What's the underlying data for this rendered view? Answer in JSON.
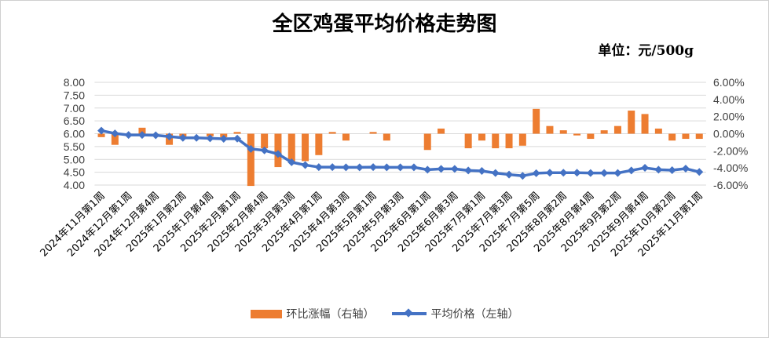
{
  "colors": {
    "bar": "#ed7d31",
    "line": "#4472c4",
    "grid": "#d9d9d9"
  },
  "chart_data": {
    "type": "bar+line",
    "title": "全区鸡蛋平均价格走势图",
    "unit": "单位：元/500g",
    "x_tick_labels": [
      "2024年11月第1周",
      "2024年12月第1周",
      "2024年12月第4周",
      "2025年1月第2周",
      "2025年1月第4周",
      "2025年2月第1周",
      "2025年2月第4周",
      "2025年3月第3周",
      "2025年4月第1周",
      "2025年4月第3周",
      "2025年5月第1周",
      "2025年5月第3周",
      "2025年6月第1周",
      "2025年6月第3周",
      "2025年7月第1周",
      "2025年7月第3周",
      "2025年7月第5周",
      "2025年8月第2周",
      "2025年8月第4周",
      "2025年9月第2周",
      "2025年9月第4周",
      "2025年10月第2周",
      "2025年11月第1周"
    ],
    "label_every": 2,
    "left_axis": {
      "range": [
        4.0,
        8.0
      ],
      "step": 0.5,
      "ticks": [
        "8.00",
        "7.50",
        "7.00",
        "6.50",
        "6.00",
        "5.50",
        "5.00",
        "4.50",
        "4.00"
      ]
    },
    "right_axis": {
      "range": [
        -6,
        6
      ],
      "step": 2,
      "ticks": [
        "6.00%",
        "4.00%",
        "2.00%",
        "0.00%",
        "-2.00%",
        "-4.00%",
        "-6.00%"
      ]
    },
    "series": [
      {
        "name": "环比涨幅（右轴）",
        "type": "bar",
        "axis": "right",
        "unit": "%",
        "values": [
          -0.4,
          -1.3,
          0,
          0.7,
          0,
          -1.3,
          -0.4,
          0,
          -0.3,
          -0.4,
          0.2,
          -6.1,
          -1.7,
          -3.9,
          -3.4,
          -3.2,
          -2.5,
          0.2,
          -0.8,
          0,
          0.2,
          -0.8,
          0,
          0,
          -1.9,
          0.6,
          0,
          -1.7,
          -0.8,
          -1.7,
          -1.7,
          -1.4,
          2.9,
          0.9,
          0.4,
          -0.2,
          -0.6,
          0.4,
          0.9,
          2.7,
          2.3,
          0.6,
          -0.8,
          -0.6,
          -0.6
        ]
      },
      {
        "name": "平均价格（左轴）",
        "type": "line",
        "axis": "left",
        "values": [
          6.12,
          6.01,
          5.95,
          5.95,
          5.94,
          5.89,
          5.84,
          5.84,
          5.82,
          5.8,
          5.81,
          5.41,
          5.35,
          5.21,
          4.89,
          4.78,
          4.7,
          4.7,
          4.69,
          4.69,
          4.7,
          4.69,
          4.69,
          4.69,
          4.6,
          4.63,
          4.63,
          4.57,
          4.55,
          4.47,
          4.41,
          4.36,
          4.46,
          4.48,
          4.48,
          4.48,
          4.47,
          4.47,
          4.47,
          4.57,
          4.67,
          4.6,
          4.58,
          4.64,
          4.51
        ]
      }
    ],
    "grid": true,
    "legend": "bottom"
  }
}
